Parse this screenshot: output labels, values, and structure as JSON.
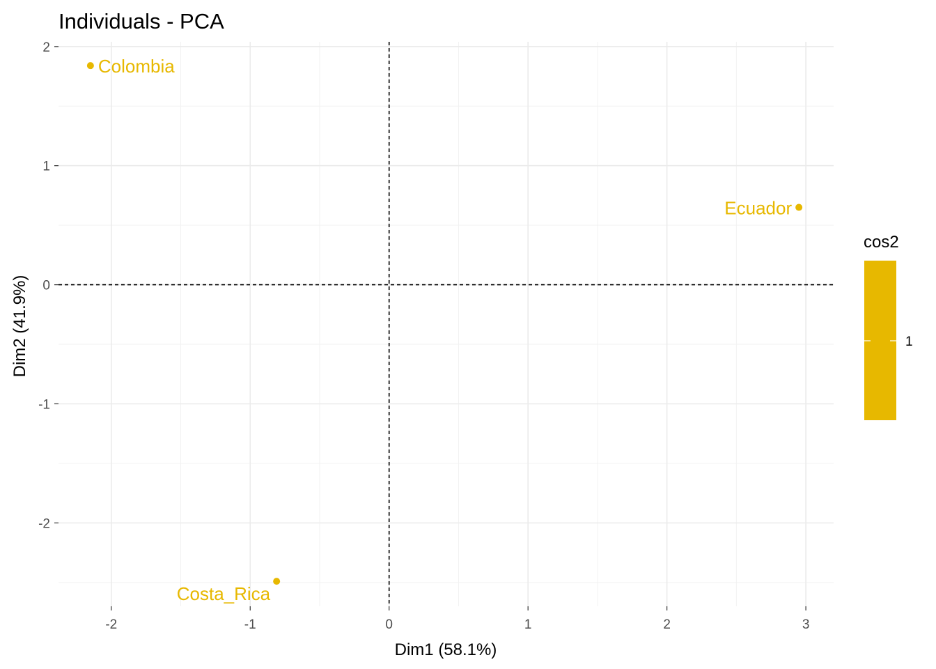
{
  "chart_data": {
    "type": "scatter",
    "title": "Individuals - PCA",
    "xlabel": "Dim1 (58.1%)",
    "ylabel": "Dim2 (41.9%)",
    "xlim": [
      -2.38,
      3.2
    ],
    "ylim": [
      -2.7,
      2.04
    ],
    "x_ticks": [
      -2,
      -1,
      0,
      1,
      2,
      3
    ],
    "x_tick_labels": [
      "-2",
      "-1",
      "0",
      "1",
      "2",
      "3"
    ],
    "y_ticks": [
      -2,
      -1,
      0,
      1,
      2
    ],
    "y_tick_labels": [
      "-2",
      "-1",
      "0",
      "1",
      "2"
    ],
    "grid": true,
    "reference_lines": {
      "x": 0,
      "y": 0,
      "style": "dashed"
    },
    "point_color": "#E7B800",
    "points": [
      {
        "label": "Colombia",
        "x": -2.15,
        "y": 1.84,
        "label_side": "right"
      },
      {
        "label": "Ecuador",
        "x": 2.95,
        "y": 0.65,
        "label_side": "left"
      },
      {
        "label": "Costa_Rica",
        "x": -0.81,
        "y": -2.49,
        "label_side": "left-below"
      }
    ],
    "legend": {
      "title": "cos2",
      "type": "colorbar",
      "color": "#E7B800",
      "labels": [
        "1"
      ],
      "placement": "right"
    }
  }
}
